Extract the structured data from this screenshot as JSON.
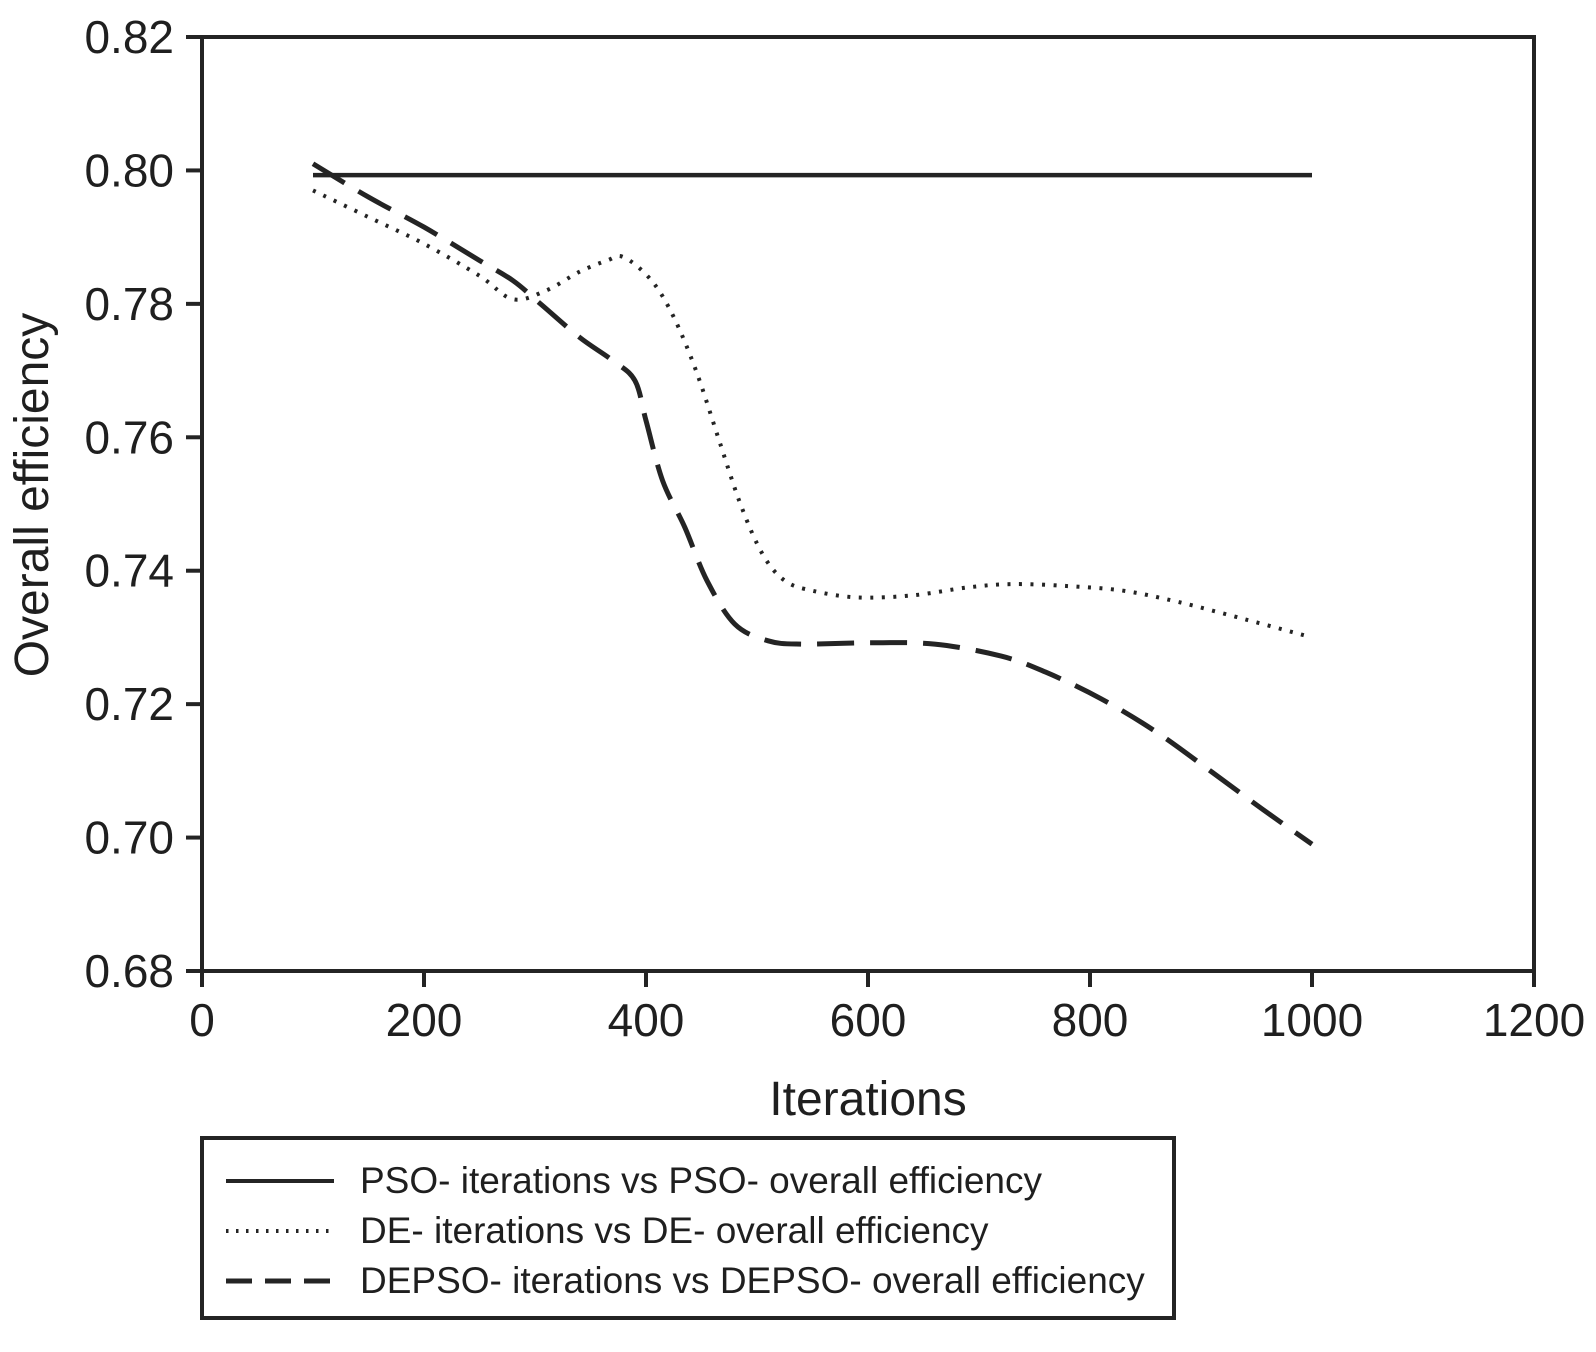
{
  "chart_data": {
    "type": "line",
    "title": "",
    "xlabel": "Iterations",
    "ylabel": "Overall efficiency",
    "xlim": [
      0,
      1200
    ],
    "ylim": [
      0.68,
      0.82
    ],
    "x_ticks": [
      0,
      200,
      400,
      600,
      800,
      1000,
      1200
    ],
    "y_ticks": [
      0.68,
      0.7,
      0.72,
      0.74,
      0.76,
      0.78,
      0.8,
      0.82
    ],
    "grid": false,
    "legend_position": "below-axis",
    "series": [
      {
        "name": "PSO- iterations vs PSO- overall efficiency",
        "style": "solid",
        "points": [
          [
            100,
            0.7993
          ],
          [
            1000,
            0.7993
          ]
        ]
      },
      {
        "name": "DE- iterations vs DE- overall efficiency",
        "style": "dotted",
        "points": [
          [
            100,
            0.797
          ],
          [
            150,
            0.793
          ],
          [
            200,
            0.789
          ],
          [
            250,
            0.7842
          ],
          [
            280,
            0.7807
          ],
          [
            310,
            0.782
          ],
          [
            340,
            0.7848
          ],
          [
            365,
            0.7865
          ],
          [
            380,
            0.787
          ],
          [
            405,
            0.7835
          ],
          [
            425,
            0.778
          ],
          [
            445,
            0.77
          ],
          [
            465,
            0.76
          ],
          [
            485,
            0.75
          ],
          [
            505,
            0.7425
          ],
          [
            525,
            0.7385
          ],
          [
            550,
            0.737
          ],
          [
            590,
            0.736
          ],
          [
            640,
            0.7363
          ],
          [
            690,
            0.7375
          ],
          [
            730,
            0.738
          ],
          [
            780,
            0.7377
          ],
          [
            830,
            0.737
          ],
          [
            880,
            0.7353
          ],
          [
            940,
            0.7327
          ],
          [
            1000,
            0.73
          ]
        ]
      },
      {
        "name": "DEPSO- iterations vs DEPSO- overall efficiency",
        "style": "dashed",
        "points": [
          [
            100,
            0.801
          ],
          [
            150,
            0.796
          ],
          [
            200,
            0.7915
          ],
          [
            250,
            0.7865
          ],
          [
            280,
            0.7835
          ],
          [
            305,
            0.78
          ],
          [
            340,
            0.775
          ],
          [
            370,
            0.7715
          ],
          [
            390,
            0.7685
          ],
          [
            400,
            0.7625
          ],
          [
            415,
            0.7535
          ],
          [
            435,
            0.7465
          ],
          [
            455,
            0.7385
          ],
          [
            480,
            0.732
          ],
          [
            510,
            0.7295
          ],
          [
            540,
            0.729
          ],
          [
            600,
            0.7292
          ],
          [
            660,
            0.729
          ],
          [
            720,
            0.7272
          ],
          [
            760,
            0.7248
          ],
          [
            810,
            0.7208
          ],
          [
            860,
            0.7158
          ],
          [
            910,
            0.7098
          ],
          [
            955,
            0.7043
          ],
          [
            1000,
            0.699
          ]
        ]
      }
    ]
  },
  "colors": {
    "line": "#242424",
    "text": "#1f1f1f",
    "background": "#ffffff"
  }
}
